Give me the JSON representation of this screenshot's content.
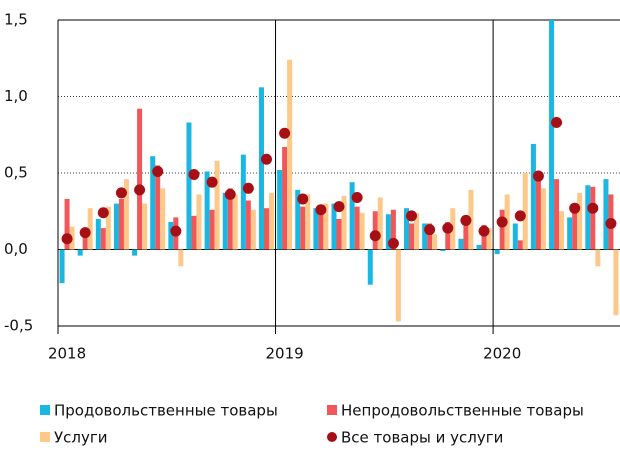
{
  "chart_data": {
    "type": "bar",
    "categories": [
      "2018",
      null,
      null,
      null,
      null,
      null,
      null,
      null,
      null,
      null,
      null,
      null,
      "2019",
      null,
      null,
      null,
      null,
      null,
      null,
      null,
      null,
      null,
      null,
      null,
      "2020",
      null,
      null,
      null,
      null,
      null,
      null
    ],
    "series": [
      {
        "name": "Продовольственные товары",
        "color": "#1bb7e3",
        "values": [
          -0.22,
          -0.04,
          0.2,
          0.3,
          -0.04,
          0.61,
          0.18,
          0.83,
          0.51,
          0.37,
          0.62,
          1.06,
          0.52,
          0.39,
          0.27,
          0.3,
          0.44,
          -0.23,
          0.23,
          0.27,
          0.17,
          -0.01,
          0.07,
          0.03,
          -0.03,
          0.17,
          0.69,
          1.5,
          0.21,
          0.42,
          0.46
        ]
      },
      {
        "name": "Непродовольственные товары",
        "color": "#f0565a",
        "values": [
          0.33,
          0.12,
          0.14,
          0.33,
          0.92,
          0.55,
          0.21,
          0.22,
          0.26,
          0.4,
          0.32,
          0.27,
          0.67,
          0.28,
          0.25,
          0.2,
          0.28,
          0.25,
          0.26,
          0.17,
          0.17,
          0.18,
          0.22,
          0.16,
          0.26,
          0.06,
          0.51,
          0.46,
          0.3,
          0.41,
          0.36
        ]
      },
      {
        "name": "Услуги",
        "color": "#fdc98a",
        "values": [
          0.15,
          0.27,
          0.28,
          0.46,
          0.3,
          0.4,
          -0.11,
          0.36,
          0.58,
          0.36,
          0.26,
          0.37,
          1.24,
          0.36,
          0.3,
          0.35,
          0.24,
          0.34,
          -0.47,
          0.24,
          0.1,
          0.27,
          0.39,
          0.14,
          0.36,
          0.5,
          0.4,
          0.25,
          0.37,
          -0.11,
          -0.43
        ]
      },
      {
        "name": "Все товары и услуги",
        "color": "#a50f15",
        "type": "scatter",
        "values": [
          0.07,
          0.11,
          0.24,
          0.37,
          0.39,
          0.51,
          0.12,
          0.49,
          0.44,
          0.36,
          0.4,
          0.59,
          0.76,
          0.33,
          0.26,
          0.28,
          0.34,
          0.09,
          0.04,
          0.22,
          0.13,
          0.14,
          0.19,
          0.12,
          0.18,
          0.22,
          0.48,
          0.83,
          0.27,
          0.27,
          0.17
        ]
      }
    ],
    "ylim": [
      -0.5,
      1.5
    ],
    "yticks": [
      {
        "value": -0.5,
        "label": "-0,5"
      },
      {
        "value": 0,
        "label": "0,0"
      },
      {
        "value": 0.5,
        "label": "0,5"
      },
      {
        "value": 1,
        "label": "1,0"
      },
      {
        "value": 1.5,
        "label": "1,5"
      }
    ],
    "grid": true
  }
}
